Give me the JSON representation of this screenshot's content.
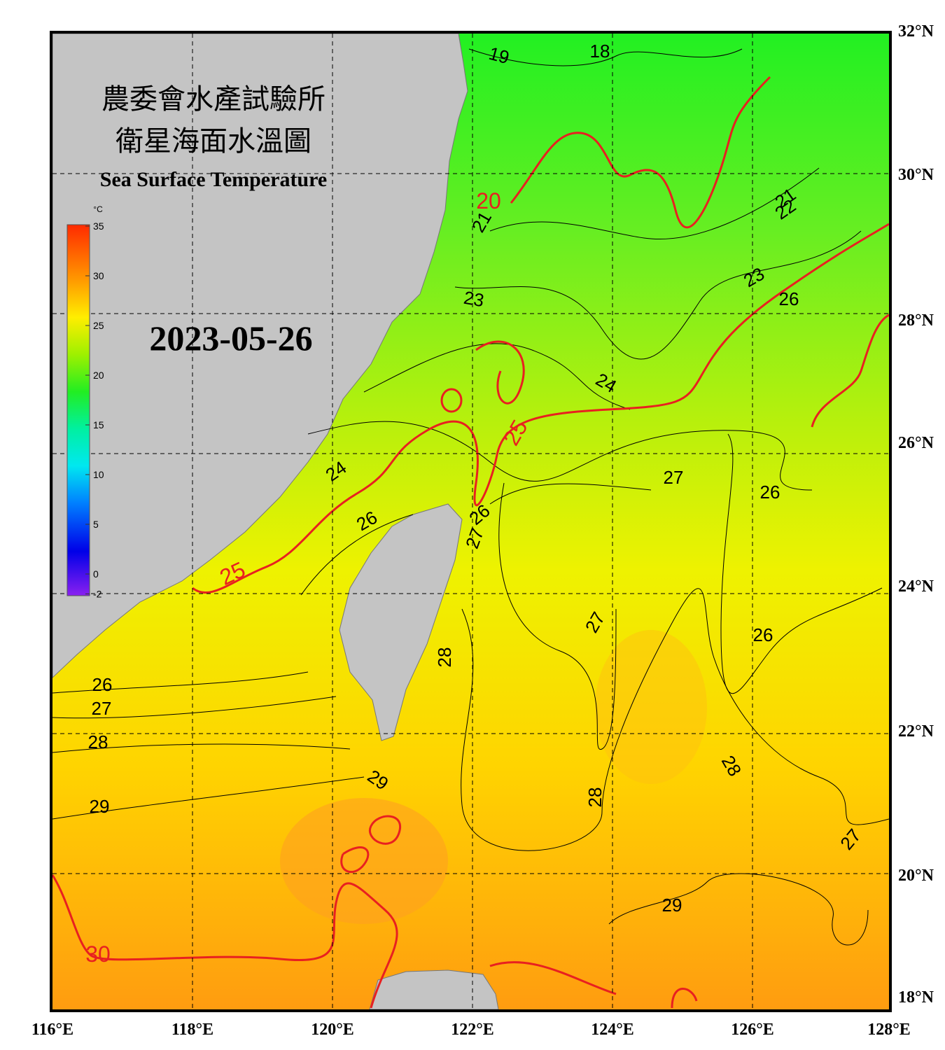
{
  "map": {
    "title_zh_1": "農委會水產試驗所",
    "title_zh_2": "衛星海面水溫圖",
    "title_en": "Sea Surface Temperature",
    "date": "2023-05-26",
    "colorbar": {
      "unit": "°C",
      "ticks": [
        35,
        30,
        25,
        20,
        15,
        10,
        5,
        0,
        -2
      ]
    },
    "lon_labels": [
      "116°E",
      "118°E",
      "120°E",
      "122°E",
      "124°E",
      "126°E",
      "128°E"
    ],
    "lat_labels": [
      "32°N",
      "30°N",
      "28°N",
      "26°N",
      "24°N",
      "22°N",
      "20°N",
      "18°N"
    ],
    "contour_labels": [
      "19",
      "18",
      "20",
      "21",
      "22",
      "21",
      "23",
      "23",
      "26",
      "24",
      "25",
      "27",
      "26",
      "24",
      "26",
      "26",
      "27",
      "25",
      "27",
      "26",
      "28",
      "26",
      "27",
      "28",
      "29",
      "28",
      "28",
      "29",
      "27",
      "29",
      "30"
    ]
  }
}
